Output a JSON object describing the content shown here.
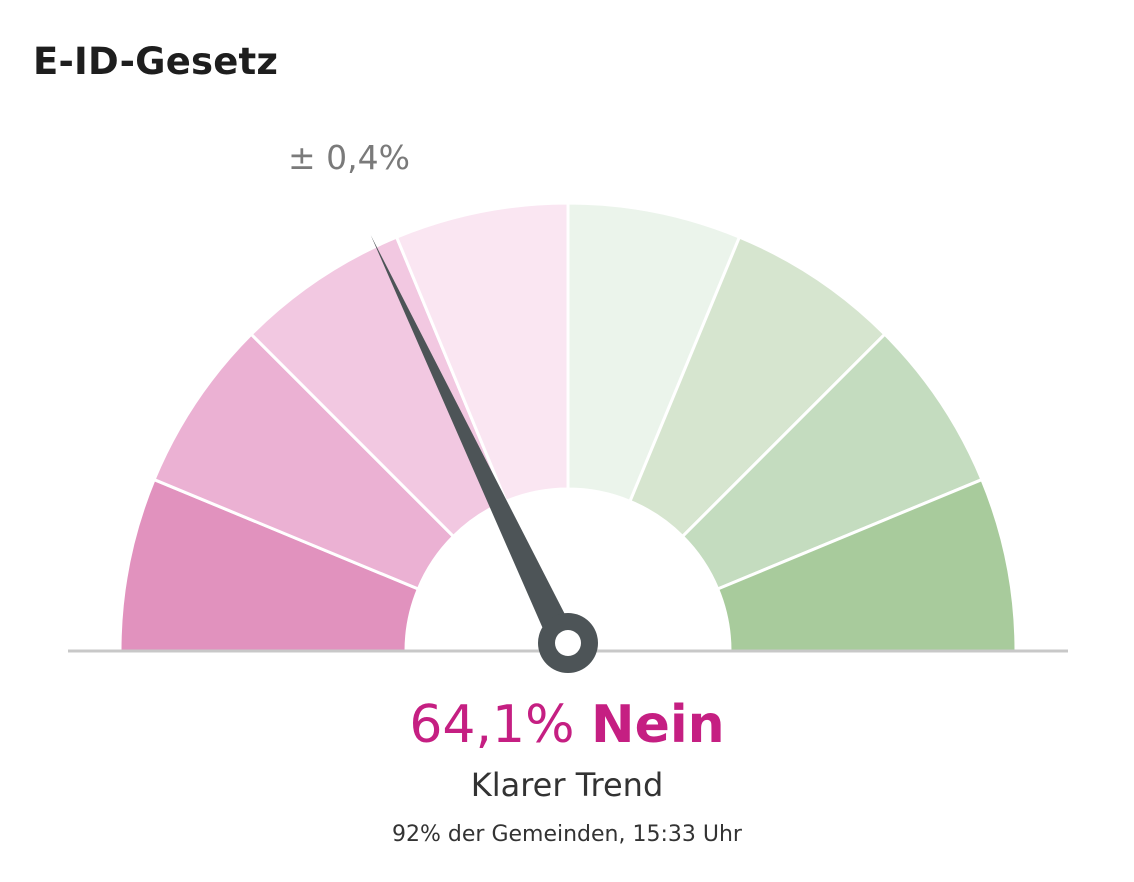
{
  "title": "E-ID-Gesetz",
  "colors": {
    "segments": [
      "#e192be",
      "#ebb1d3",
      "#f2c8e1",
      "#fae6f2",
      "#ebf4eb",
      "#d6e5cf",
      "#c4dcbf",
      "#a8cb9c"
    ],
    "needle": "#4d5457",
    "baseline": "#c8c8c8",
    "result": "#c51f82",
    "margin_label": "#7a7a7a"
  },
  "chart_data": {
    "type": "gauge",
    "title": "E-ID-Gesetz",
    "value": 64.1,
    "value_unit": "%",
    "answer": "Nein",
    "margin_of_error": 0.4,
    "segments": 8,
    "range": [
      0,
      100
    ]
  },
  "labels": {
    "margin": "± 0,4%",
    "value": "64,1%",
    "answer": "Nein",
    "trend": "Klarer Trend",
    "status": "92% der Gemeinden, 15:33 Uhr"
  }
}
